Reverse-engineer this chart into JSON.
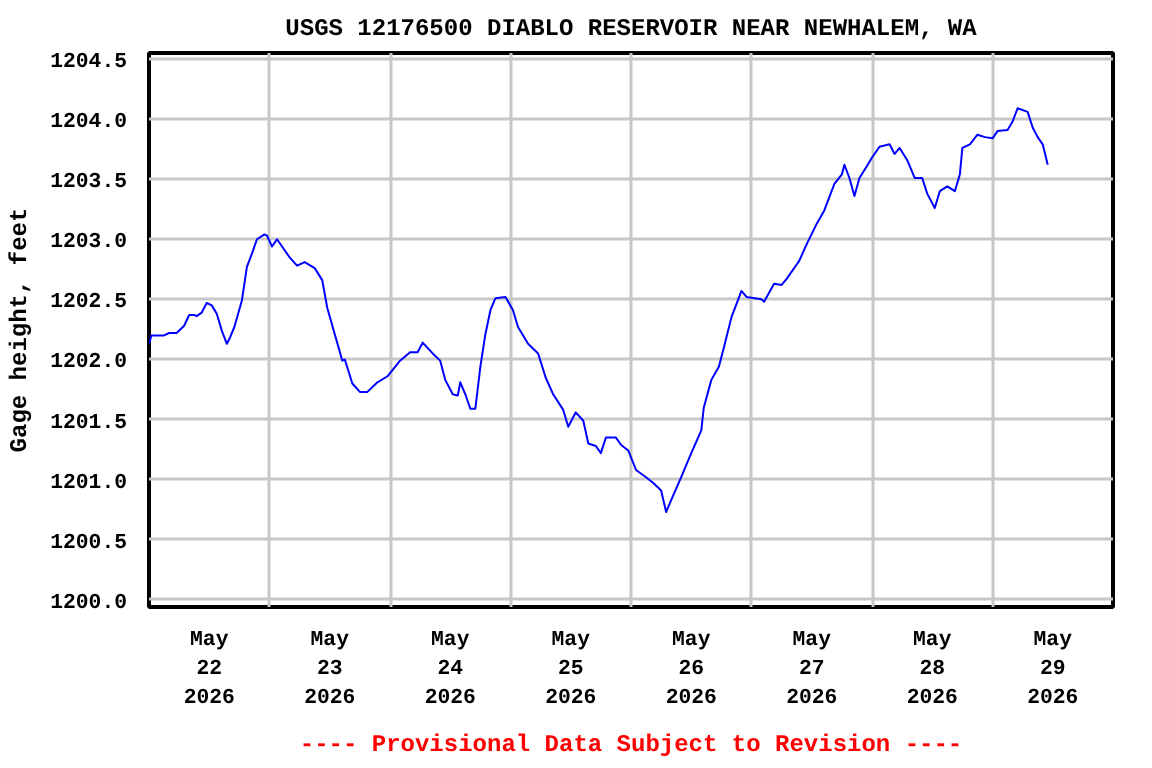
{
  "chart_data": {
    "type": "line",
    "title": "USGS 12176500 DIABLO RESERVOIR NEAR NEWHALEM, WA",
    "ylabel": "Gage height, feet",
    "annotations": [
      "---- Provisional Data Subject to Revision ----"
    ],
    "x": [
      "2026-05-22T00:00",
      "2026-05-22T00:30",
      "2026-05-22T03:00",
      "2026-05-22T04:00",
      "2026-05-22T05:30",
      "2026-05-22T07:00",
      "2026-05-22T08:00",
      "2026-05-22T09:00",
      "2026-05-22T09:30",
      "2026-05-22T10:30",
      "2026-05-22T11:30",
      "2026-05-22T12:30",
      "2026-05-22T13:30",
      "2026-05-22T14:30",
      "2026-05-22T15:30",
      "2026-05-22T16:00",
      "2026-05-22T17:00",
      "2026-05-22T18:30",
      "2026-05-22T19:30",
      "2026-05-22T20:30",
      "2026-05-22T21:30",
      "2026-05-22T23:00",
      "2026-05-22T23:30",
      "2026-05-23T00:30",
      "2026-05-23T01:30",
      "2026-05-23T02:30",
      "2026-05-23T04:00",
      "2026-05-23T05:30",
      "2026-05-23T07:00",
      "2026-05-23T09:00",
      "2026-05-23T10:30",
      "2026-05-23T11:30",
      "2026-05-23T13:00",
      "2026-05-23T14:30",
      "2026-05-23T15:00",
      "2026-05-23T16:30",
      "2026-05-23T18:00",
      "2026-05-23T19:30",
      "2026-05-23T21:30",
      "2026-05-23T23:30",
      "2026-05-24T02:00",
      "2026-05-24T04:00",
      "2026-05-24T05:30",
      "2026-05-24T06:30",
      "2026-05-24T08:30",
      "2026-05-24T10:00",
      "2026-05-24T11:00",
      "2026-05-24T12:30",
      "2026-05-24T13:30",
      "2026-05-24T14:00",
      "2026-05-24T15:00",
      "2026-05-24T16:00",
      "2026-05-24T17:00",
      "2026-05-24T18:00",
      "2026-05-24T19:00",
      "2026-05-24T20:00",
      "2026-05-24T21:00",
      "2026-05-24T23:00",
      "2026-05-25T00:30",
      "2026-05-25T01:30",
      "2026-05-25T03:30",
      "2026-05-25T05:30",
      "2026-05-25T07:00",
      "2026-05-25T08:30",
      "2026-05-25T10:30",
      "2026-05-25T11:30",
      "2026-05-25T13:00",
      "2026-05-25T14:30",
      "2026-05-25T15:30",
      "2026-05-25T17:00",
      "2026-05-25T18:00",
      "2026-05-25T19:00",
      "2026-05-25T21:00",
      "2026-05-25T22:00",
      "2026-05-25T23:30",
      "2026-05-26T01:00",
      "2026-05-26T03:00",
      "2026-05-26T04:30",
      "2026-05-26T06:00",
      "2026-05-26T07:00",
      "2026-05-26T08:00",
      "2026-05-26T10:00",
      "2026-05-26T12:00",
      "2026-05-26T14:00",
      "2026-05-26T14:30",
      "2026-05-26T16:00",
      "2026-05-26T17:30",
      "2026-05-26T18:30",
      "2026-05-26T20:00",
      "2026-05-26T21:00",
      "2026-05-26T22:00",
      "2026-05-26T23:00",
      "2026-05-27T02:00",
      "2026-05-27T02:30",
      "2026-05-27T04:30",
      "2026-05-27T06:00",
      "2026-05-27T07:00",
      "2026-05-27T09:00",
      "2026-05-27T09:30",
      "2026-05-27T11:00",
      "2026-05-27T13:00",
      "2026-05-27T14:30",
      "2026-05-27T15:30",
      "2026-05-27T16:30",
      "2026-05-27T18:00",
      "2026-05-27T18:30",
      "2026-05-27T19:30",
      "2026-05-27T20:30",
      "2026-05-27T21:30",
      "2026-05-27T23:00",
      "2026-05-28T00:00",
      "2026-05-28T01:30",
      "2026-05-28T03:30",
      "2026-05-28T04:30",
      "2026-05-28T05:30",
      "2026-05-28T07:00",
      "2026-05-28T08:30",
      "2026-05-28T10:00",
      "2026-05-28T11:00",
      "2026-05-28T12:30",
      "2026-05-28T13:30",
      "2026-05-28T15:00",
      "2026-05-28T16:30",
      "2026-05-28T17:30",
      "2026-05-28T18:00",
      "2026-05-28T19:30",
      "2026-05-28T21:00",
      "2026-05-28T22:30",
      "2026-05-29T00:00",
      "2026-05-29T01:00",
      "2026-05-29T03:00",
      "2026-05-29T04:00",
      "2026-05-29T05:00",
      "2026-05-29T07:00",
      "2026-05-29T08:00",
      "2026-05-29T09:00",
      "2026-05-29T10:00",
      "2026-05-29T11:00"
    ],
    "series": [
      {
        "color": "#0000ff",
        "values": [
          1202.13,
          1202.2,
          1202.2,
          1202.22,
          1202.22,
          1202.28,
          1202.37,
          1202.37,
          1202.36,
          1202.39,
          1202.47,
          1202.45,
          1202.38,
          1202.24,
          1202.13,
          1202.17,
          1202.27,
          1202.49,
          1202.77,
          1202.88,
          1203.0,
          1203.04,
          1203.03,
          1202.94,
          1203.0,
          1202.94,
          1202.85,
          1202.78,
          1202.81,
          1202.76,
          1202.66,
          1202.43,
          1202.21,
          1201.99,
          1202.0,
          1201.8,
          1201.73,
          1201.73,
          1201.81,
          1201.86,
          1201.99,
          1202.06,
          1202.06,
          1202.14,
          1202.05,
          1201.99,
          1201.83,
          1201.71,
          1201.7,
          1201.81,
          1201.71,
          1201.59,
          1201.59,
          1201.94,
          1202.21,
          1202.41,
          1202.51,
          1202.52,
          1202.41,
          1202.27,
          1202.13,
          1202.05,
          1201.85,
          1201.71,
          1201.58,
          1201.44,
          1201.56,
          1201.49,
          1201.3,
          1201.28,
          1201.22,
          1201.35,
          1201.35,
          1201.29,
          1201.24,
          1201.08,
          1201.02,
          1200.97,
          1200.91,
          1200.73,
          1200.83,
          1201.02,
          1201.22,
          1201.41,
          1201.6,
          1201.83,
          1201.94,
          1202.1,
          1202.35,
          1202.46,
          1202.57,
          1202.52,
          1202.5,
          1202.48,
          1202.63,
          1202.62,
          1202.67,
          1202.79,
          1202.82,
          1202.96,
          1203.13,
          1203.24,
          1203.35,
          1203.46,
          1203.54,
          1203.62,
          1203.51,
          1203.36,
          1203.51,
          1203.61,
          1203.68,
          1203.77,
          1203.79,
          1203.71,
          1203.76,
          1203.66,
          1203.51,
          1203.51,
          1203.38,
          1203.26,
          1203.4,
          1203.44,
          1203.4,
          1203.54,
          1203.76,
          1203.79,
          1203.87,
          1203.85,
          1203.84,
          1203.9,
          1203.91,
          1203.98,
          1204.09,
          1204.06,
          1203.93,
          1203.85,
          1203.79,
          1203.62
        ]
      }
    ],
    "xlim": [
      "2026-05-22T00:00",
      "2026-05-30T00:00"
    ],
    "xticks": [
      {
        "value": "2026-05-22T00:00",
        "label": null
      },
      {
        "value": "2026-05-22T12:00",
        "label": "May\n22\n2026"
      },
      {
        "value": "2026-05-23T00:00",
        "label": null
      },
      {
        "value": "2026-05-23T12:00",
        "label": "May\n23\n2026"
      },
      {
        "value": "2026-05-24T00:00",
        "label": null
      },
      {
        "value": "2026-05-24T12:00",
        "label": "May\n24\n2026"
      },
      {
        "value": "2026-05-25T00:00",
        "label": null
      },
      {
        "value": "2026-05-25T12:00",
        "label": "May\n25\n2026"
      },
      {
        "value": "2026-05-26T00:00",
        "label": null
      },
      {
        "value": "2026-05-26T12:00",
        "label": "May\n26\n2026"
      },
      {
        "value": "2026-05-27T00:00",
        "label": null
      },
      {
        "value": "2026-05-27T12:00",
        "label": "May\n27\n2026"
      },
      {
        "value": "2026-05-28T00:00",
        "label": null
      },
      {
        "value": "2026-05-28T12:00",
        "label": "May\n28\n2026"
      },
      {
        "value": "2026-05-29T00:00",
        "label": null
      },
      {
        "value": "2026-05-29T12:00",
        "label": "May\n29\n2026"
      }
    ],
    "ylim": [
      1199.94,
      1204.55
    ],
    "yticks": [
      {
        "value": 1200.0,
        "label": "1200.0"
      },
      {
        "value": 1200.5,
        "label": "1200.5"
      },
      {
        "value": 1201.0,
        "label": "1201.0"
      },
      {
        "value": 1201.5,
        "label": "1201.5"
      },
      {
        "value": 1202.0,
        "label": "1202.0"
      },
      {
        "value": 1202.5,
        "label": "1202.5"
      },
      {
        "value": 1203.0,
        "label": "1203.0"
      },
      {
        "value": 1203.5,
        "label": "1203.5"
      },
      {
        "value": 1204.0,
        "label": "1204.0"
      },
      {
        "value": 1204.5,
        "label": "1204.5"
      }
    ],
    "grid": true,
    "marker": "none",
    "line_style": "solid"
  }
}
